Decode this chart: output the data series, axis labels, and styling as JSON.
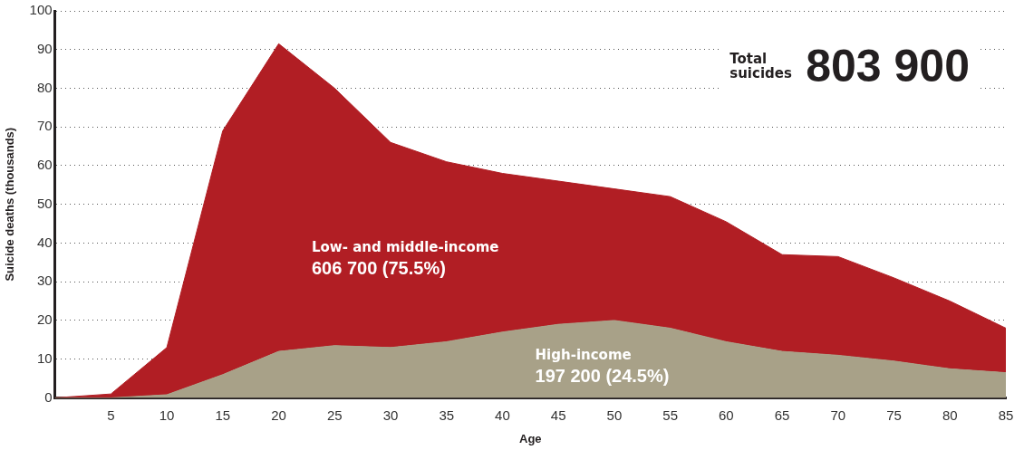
{
  "chart_data": {
    "type": "area",
    "xlabel": "Age",
    "ylabel": "Suicide deaths (thousands)",
    "x": [
      0,
      5,
      10,
      15,
      20,
      25,
      30,
      35,
      40,
      45,
      50,
      55,
      60,
      65,
      70,
      75,
      80,
      85
    ],
    "stacked": true,
    "series": [
      {
        "name": "High-income",
        "color": "#a8a188",
        "values": [
          0,
          0,
          0.8,
          6,
          12,
          13.5,
          13,
          14.5,
          17,
          19,
          20,
          18,
          14.5,
          12,
          11,
          9.5,
          7.5,
          6.5
        ]
      },
      {
        "name": "Low- and middle-income",
        "color": "#b11e24",
        "values": [
          0,
          1,
          12.2,
          63,
          79.5,
          66.5,
          53,
          46.5,
          41,
          37,
          34,
          34,
          31,
          25,
          25.5,
          21.5,
          17.5,
          11.5
        ]
      }
    ],
    "xlim": [
      0,
      85
    ],
    "xticks": [
      5,
      10,
      15,
      20,
      25,
      30,
      35,
      40,
      45,
      50,
      55,
      60,
      65,
      70,
      75,
      80,
      85
    ],
    "ylim": [
      0,
      100
    ],
    "yticks": [
      0,
      10,
      20,
      30,
      40,
      50,
      60,
      70,
      80,
      90,
      100
    ],
    "grid": "y",
    "legend": false,
    "annotations": [
      "197 200 (24.5%)",
      "606 700 (75.5%)",
      "Total suicides",
      "803 900"
    ]
  }
}
